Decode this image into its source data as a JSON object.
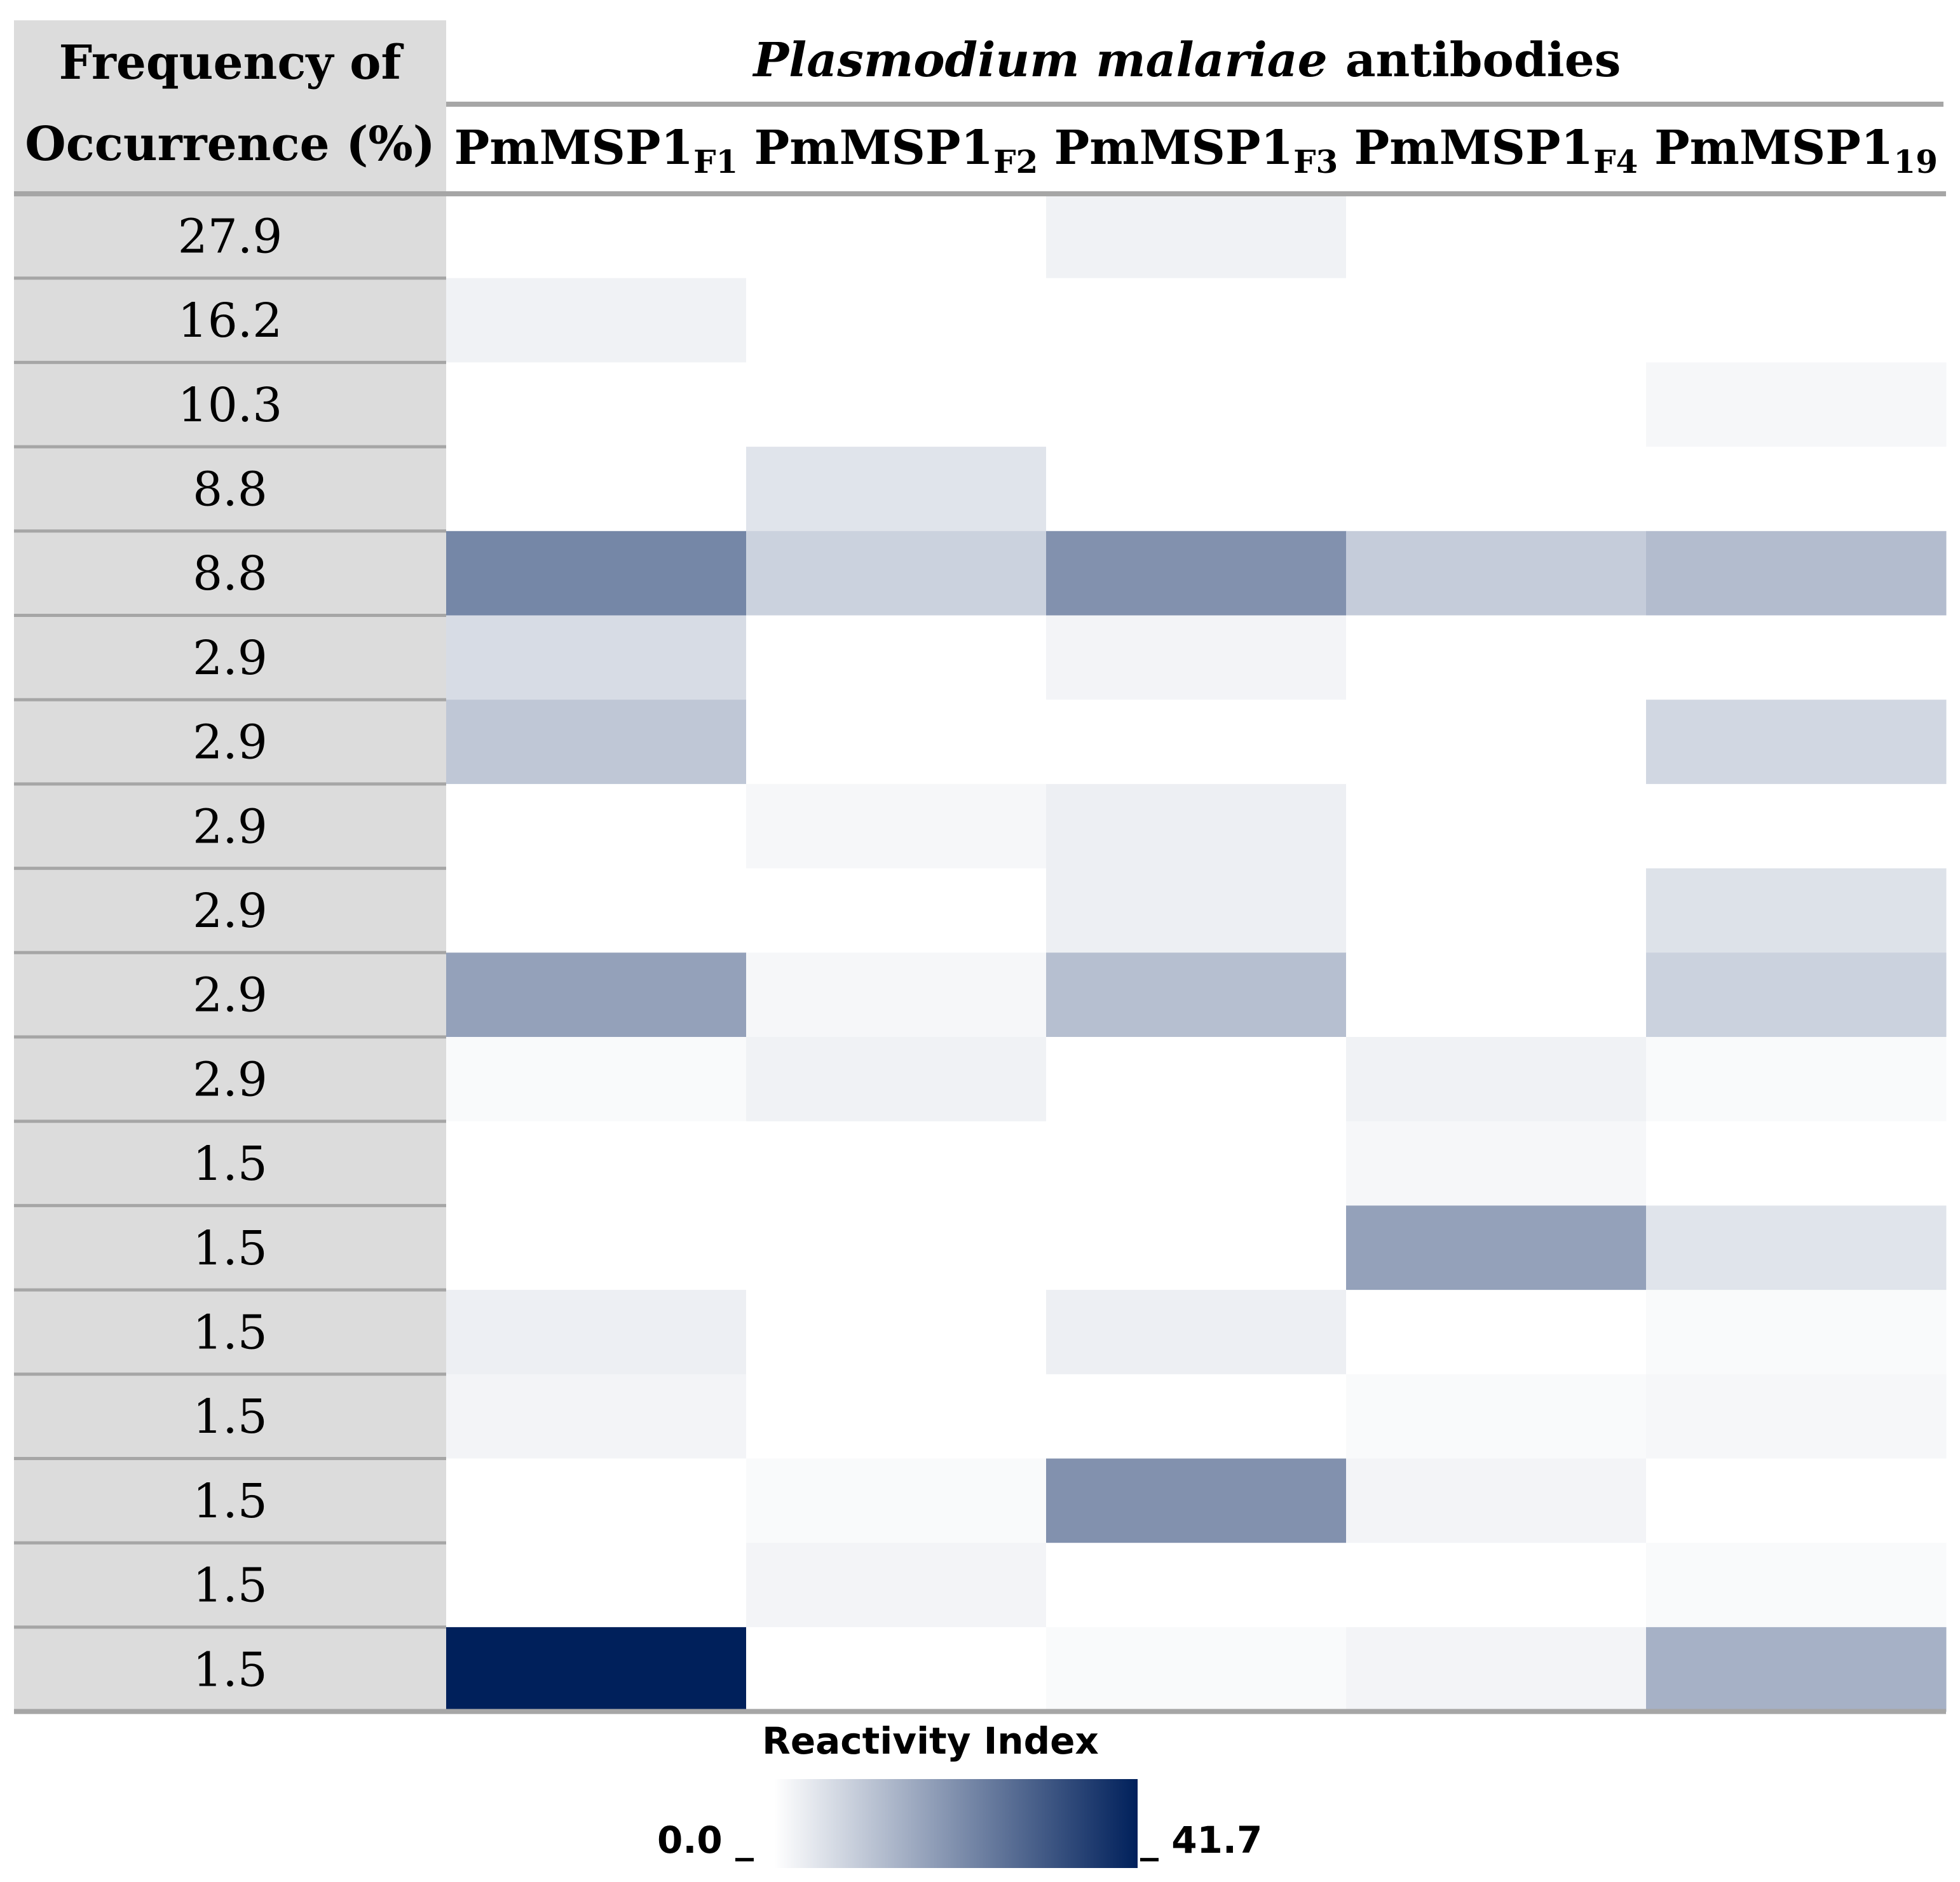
{
  "chart_data": {
    "type": "heatmap",
    "row_header": [
      "Frequency of",
      "Occurrence (%)"
    ],
    "column_group_title": {
      "italic": "Plasmodium malariae",
      "normal": "antibodies"
    },
    "columns": [
      {
        "base": "PmMSP1",
        "sub": "F1"
      },
      {
        "base": "PmMSP1",
        "sub": "F2"
      },
      {
        "base": "PmMSP1",
        "sub": "F3"
      },
      {
        "base": "PmMSP1",
        "sub": "F4"
      },
      {
        "base": "PmMSP1",
        "sub": "19"
      }
    ],
    "rows": [
      "27.9",
      "16.2",
      "10.3",
      "8.8",
      "8.8",
      "2.9",
      "2.9",
      "2.9",
      "2.9",
      "2.9",
      "2.9",
      "1.5",
      "1.5",
      "1.5",
      "1.5",
      "1.5",
      "1.5",
      "1.5"
    ],
    "values": [
      [
        0.0,
        0.0,
        2.5,
        0.0,
        0.0
      ],
      [
        2.5,
        0.0,
        0.0,
        0.0,
        0.0
      ],
      [
        0.0,
        0.0,
        0.0,
        0.0,
        1.5
      ],
      [
        0.0,
        5.0,
        0.0,
        0.0,
        0.0
      ],
      [
        22.5,
        8.5,
        20.5,
        9.5,
        12.5
      ],
      [
        6.5,
        0.0,
        2.0,
        0.0,
        0.0
      ],
      [
        10.5,
        0.0,
        0.0,
        0.0,
        7.5
      ],
      [
        0.0,
        1.5,
        3.0,
        0.0,
        0.0
      ],
      [
        0.0,
        0.0,
        3.0,
        0.0,
        5.5
      ],
      [
        17.5,
        1.5,
        12.0,
        0.0,
        8.5
      ],
      [
        1.0,
        2.5,
        0.0,
        2.5,
        1.0
      ],
      [
        0.0,
        0.0,
        0.0,
        1.5,
        0.0
      ],
      [
        0.0,
        0.0,
        0.0,
        17.5,
        5.0
      ],
      [
        3.0,
        0.0,
        3.0,
        0.0,
        1.0
      ],
      [
        2.0,
        0.0,
        0.0,
        1.0,
        1.5
      ],
      [
        0.0,
        1.0,
        20.5,
        2.0,
        0.0
      ],
      [
        0.0,
        2.0,
        0.0,
        0.0,
        1.0
      ],
      [
        41.7,
        0.0,
        1.0,
        2.0,
        14.5
      ]
    ],
    "colorbar": {
      "title": "Reactivity Index",
      "min": 0.0,
      "max": 41.7,
      "min_label": "0.0 _",
      "max_label": "_ 41.7",
      "color_low": "#ffffff",
      "color_high": "#00205b"
    },
    "colors": {
      "header_fill": "#dcdcdc",
      "rule": "#a6a6a6"
    }
  }
}
